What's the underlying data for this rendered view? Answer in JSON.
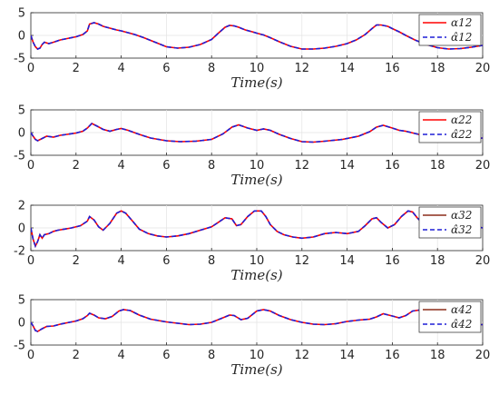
{
  "colors": {
    "solid": "#ff0000",
    "dashed": "#1f1fd6",
    "solid_dark": "#8b2d1a"
  },
  "chart_data": [
    {
      "type": "line",
      "xlabel": "Time(s)",
      "xlim": [
        0,
        20
      ],
      "ylim": [
        -5,
        5
      ],
      "xticks": [
        "0",
        "2",
        "4",
        "6",
        "8",
        "10",
        "12",
        "14",
        "16",
        "18",
        "20"
      ],
      "yticks": [
        "5",
        "0",
        "-5"
      ],
      "grid": true,
      "legend_position": "right",
      "x": [
        0,
        0.1,
        0.2,
        0.3,
        0.4,
        0.5,
        0.6,
        0.8,
        1,
        1.3,
        1.6,
        2,
        2.3,
        2.5,
        2.6,
        2.8,
        3,
        3.2,
        3.5,
        3.8,
        4,
        4.3,
        4.6,
        5,
        5.5,
        6,
        6.5,
        7,
        7.5,
        8,
        8.3,
        8.6,
        8.8,
        9,
        9.2,
        9.5,
        9.8,
        10,
        10.3,
        10.6,
        11,
        11.5,
        12,
        12.5,
        13,
        13.5,
        14,
        14.4,
        14.8,
        15.1,
        15.3,
        15.5,
        15.8,
        16,
        16.3,
        16.6,
        17,
        17.5,
        18,
        18.5,
        19,
        19.5,
        20
      ],
      "series": [
        {
          "name": "α12",
          "style": "solid",
          "values": [
            0,
            -1.5,
            -2.5,
            -3,
            -2.8,
            -2,
            -1.5,
            -1.8,
            -1.5,
            -1,
            -0.7,
            -0.3,
            0.2,
            1,
            2.5,
            2.8,
            2.5,
            2,
            1.6,
            1.2,
            1,
            0.6,
            0.2,
            -0.5,
            -1.5,
            -2.5,
            -2.8,
            -2.6,
            -2,
            -0.9,
            0.5,
            1.8,
            2.2,
            2.1,
            1.8,
            1.2,
            0.8,
            0.5,
            0.1,
            -0.5,
            -1.4,
            -2.4,
            -3,
            -3,
            -2.8,
            -2.4,
            -1.8,
            -1,
            0.2,
            1.5,
            2.3,
            2.3,
            2,
            1.5,
            0.8,
            0,
            -1,
            -2,
            -2.7,
            -3,
            -2.9,
            -2.6,
            -2.2
          ]
        },
        {
          "name": "α̂12",
          "style": "dashed",
          "values": [
            0,
            -1.5,
            -2.5,
            -3,
            -2.8,
            -2,
            -1.5,
            -1.8,
            -1.5,
            -1,
            -0.7,
            -0.3,
            0.2,
            1,
            2.5,
            2.8,
            2.5,
            2,
            1.6,
            1.2,
            1,
            0.6,
            0.2,
            -0.5,
            -1.5,
            -2.5,
            -2.8,
            -2.6,
            -2,
            -0.9,
            0.5,
            1.8,
            2.2,
            2.1,
            1.8,
            1.2,
            0.8,
            0.5,
            0.1,
            -0.5,
            -1.4,
            -2.4,
            -3,
            -3,
            -2.8,
            -2.4,
            -1.8,
            -1,
            0.2,
            1.5,
            2.3,
            2.3,
            2,
            1.5,
            0.8,
            0,
            -1,
            -2,
            -2.7,
            -3,
            -2.9,
            -2.6,
            -2.2
          ]
        }
      ]
    },
    {
      "type": "line",
      "xlabel": "Time(s)",
      "xlim": [
        0,
        20
      ],
      "ylim": [
        -5,
        5
      ],
      "xticks": [
        "0",
        "2",
        "4",
        "6",
        "8",
        "10",
        "12",
        "14",
        "16",
        "18",
        "20"
      ],
      "yticks": [
        "5",
        "0",
        "-5"
      ],
      "grid": true,
      "legend_position": "right",
      "x": [
        0,
        0.1,
        0.2,
        0.3,
        0.5,
        0.7,
        1,
        1.3,
        1.6,
        2,
        2.3,
        2.5,
        2.7,
        2.9,
        3.2,
        3.5,
        3.8,
        4,
        4.3,
        4.8,
        5.3,
        6,
        6.6,
        7.3,
        8,
        8.5,
        8.9,
        9.2,
        9.6,
        10,
        10.3,
        10.6,
        11,
        11.5,
        12,
        12.5,
        13,
        13.8,
        14.5,
        15,
        15.3,
        15.6,
        16,
        16.3,
        16.6,
        17,
        17.5,
        18,
        18.5,
        19,
        19.5,
        20
      ],
      "series": [
        {
          "name": "α22",
          "style": "solid",
          "values": [
            0,
            -0.8,
            -1.5,
            -1.8,
            -1.3,
            -0.8,
            -1,
            -0.6,
            -0.4,
            -0.1,
            0.3,
            1,
            2,
            1.5,
            0.7,
            0.3,
            0.7,
            0.9,
            0.5,
            -0.4,
            -1.2,
            -1.8,
            -2,
            -1.9,
            -1.5,
            -0.3,
            1.2,
            1.7,
            1,
            0.5,
            0.8,
            0.5,
            -0.4,
            -1.3,
            -2,
            -2.1,
            -1.9,
            -1.5,
            -0.8,
            0.2,
            1.2,
            1.6,
            1,
            0.5,
            0.3,
            -0.2,
            -0.8,
            -1.2,
            -1.5,
            -1.6,
            -1.4,
            -1.2
          ]
        },
        {
          "name": "α̂22",
          "style": "dashed",
          "values": [
            0,
            -0.8,
            -1.5,
            -1.8,
            -1.3,
            -0.8,
            -1,
            -0.6,
            -0.4,
            -0.1,
            0.3,
            1,
            2,
            1.5,
            0.7,
            0.3,
            0.7,
            0.9,
            0.5,
            -0.4,
            -1.2,
            -1.8,
            -2,
            -1.9,
            -1.5,
            -0.3,
            1.2,
            1.7,
            1,
            0.5,
            0.8,
            0.5,
            -0.4,
            -1.3,
            -2,
            -2.1,
            -1.9,
            -1.5,
            -0.8,
            0.2,
            1.2,
            1.6,
            1,
            0.5,
            0.3,
            -0.2,
            -0.8,
            -1.2,
            -1.5,
            -1.6,
            -1.4,
            -1.2
          ]
        }
      ]
    },
    {
      "type": "line",
      "xlabel": "Time(s)",
      "xlim": [
        0,
        20
      ],
      "ylim": [
        -2,
        2
      ],
      "xticks": [
        "0",
        "2",
        "4",
        "6",
        "8",
        "10",
        "12",
        "14",
        "16",
        "18",
        "20"
      ],
      "yticks": [
        "2",
        "0",
        "-2"
      ],
      "grid": true,
      "legend_position": "right",
      "x": [
        0,
        0.1,
        0.2,
        0.3,
        0.4,
        0.5,
        0.6,
        0.8,
        1,
        1.2,
        1.5,
        1.8,
        2.2,
        2.5,
        2.6,
        2.8,
        3,
        3.2,
        3.5,
        3.8,
        4,
        4.2,
        4.5,
        4.8,
        5.2,
        5.6,
        6,
        6.5,
        7,
        7.5,
        8,
        8.3,
        8.6,
        8.9,
        9.1,
        9.3,
        9.6,
        9.9,
        10.2,
        10.4,
        10.6,
        10.9,
        11.2,
        11.6,
        12,
        12.5,
        13,
        13.5,
        14,
        14.5,
        14.8,
        15.1,
        15.3,
        15.5,
        15.8,
        16.1,
        16.4,
        16.7,
        16.9,
        17.1,
        17.4,
        17.8,
        18.3,
        19,
        19.5,
        20
      ],
      "series": [
        {
          "name": "α32",
          "style": "solid",
          "values": [
            0,
            -1,
            -1.6,
            -1.2,
            -0.6,
            -0.9,
            -0.6,
            -0.5,
            -0.3,
            -0.2,
            -0.1,
            0,
            0.2,
            0.6,
            1,
            0.7,
            0.1,
            -0.2,
            0.4,
            1.3,
            1.5,
            1.3,
            0.6,
            -0.1,
            -0.5,
            -0.7,
            -0.8,
            -0.7,
            -0.5,
            -0.2,
            0.1,
            0.5,
            0.9,
            0.8,
            0.2,
            0.3,
            1,
            1.5,
            1.5,
            1,
            0.3,
            -0.3,
            -0.6,
            -0.8,
            -0.9,
            -0.8,
            -0.5,
            -0.4,
            -0.5,
            -0.3,
            0.2,
            0.8,
            0.9,
            0.5,
            0,
            0.3,
            1,
            1.5,
            1.4,
            0.9,
            0.3,
            -0.1,
            -0.1,
            0.1,
            0.2,
            0
          ]
        },
        {
          "name": "α̂32",
          "style": "dashed",
          "values": [
            0,
            -1,
            -1.6,
            -1.2,
            -0.6,
            -0.9,
            -0.6,
            -0.5,
            -0.3,
            -0.2,
            -0.1,
            0,
            0.2,
            0.6,
            1,
            0.7,
            0.1,
            -0.2,
            0.4,
            1.3,
            1.5,
            1.3,
            0.6,
            -0.1,
            -0.5,
            -0.7,
            -0.8,
            -0.7,
            -0.5,
            -0.2,
            0.1,
            0.5,
            0.9,
            0.8,
            0.2,
            0.3,
            1,
            1.5,
            1.5,
            1,
            0.3,
            -0.3,
            -0.6,
            -0.8,
            -0.9,
            -0.8,
            -0.5,
            -0.4,
            -0.5,
            -0.3,
            0.2,
            0.8,
            0.9,
            0.5,
            0,
            0.3,
            1,
            1.5,
            1.4,
            0.9,
            0.3,
            -0.1,
            -0.1,
            0.1,
            0.2,
            0
          ]
        }
      ]
    },
    {
      "type": "line",
      "xlabel": "Time(s)",
      "xlim": [
        0,
        20
      ],
      "ylim": [
        -5,
        5
      ],
      "xticks": [
        "0",
        "2",
        "4",
        "6",
        "8",
        "10",
        "12",
        "14",
        "16",
        "18",
        "20"
      ],
      "yticks": [
        "5",
        "0",
        "-5"
      ],
      "grid": true,
      "legend_position": "right",
      "x": [
        0,
        0.1,
        0.2,
        0.3,
        0.5,
        0.7,
        1,
        1.3,
        1.6,
        2,
        2.3,
        2.5,
        2.6,
        2.8,
        3,
        3.3,
        3.6,
        3.9,
        4.1,
        4.4,
        4.8,
        5.3,
        6,
        6.5,
        7,
        7.5,
        8,
        8.4,
        8.8,
        9,
        9.3,
        9.6,
        10,
        10.3,
        10.6,
        11,
        11.5,
        12,
        12.5,
        13,
        13.5,
        14,
        14.5,
        15,
        15.3,
        15.6,
        16,
        16.3,
        16.6,
        16.9,
        17.2,
        17.6,
        18,
        18.5,
        19,
        19.5,
        20
      ],
      "series": [
        {
          "name": "α42",
          "style": "solid",
          "values": [
            0,
            -0.8,
            -1.8,
            -2,
            -1.4,
            -0.9,
            -0.8,
            -0.4,
            -0.1,
            0.3,
            0.8,
            1.5,
            2,
            1.6,
            1,
            0.8,
            1.3,
            2.5,
            2.8,
            2.6,
            1.6,
            0.7,
            0.1,
            -0.2,
            -0.5,
            -0.4,
            0,
            0.8,
            1.6,
            1.5,
            0.6,
            0.9,
            2.5,
            2.8,
            2.5,
            1.5,
            0.6,
            0,
            -0.4,
            -0.5,
            -0.3,
            0.2,
            0.5,
            0.7,
            1.2,
            1.9,
            1.4,
            1,
            1.5,
            2.5,
            2.7,
            2,
            1,
            0,
            -0.4,
            -0.5,
            -0.5
          ]
        },
        {
          "name": "α̂42",
          "style": "dashed",
          "values": [
            0,
            -0.8,
            -1.8,
            -2,
            -1.4,
            -0.9,
            -0.8,
            -0.4,
            -0.1,
            0.3,
            0.8,
            1.5,
            2,
            1.6,
            1,
            0.8,
            1.3,
            2.5,
            2.8,
            2.6,
            1.6,
            0.7,
            0.1,
            -0.2,
            -0.5,
            -0.4,
            0,
            0.8,
            1.6,
            1.5,
            0.6,
            0.9,
            2.5,
            2.8,
            2.5,
            1.5,
            0.6,
            0,
            -0.4,
            -0.5,
            -0.3,
            0.2,
            0.5,
            0.7,
            1.2,
            1.9,
            1.4,
            1,
            1.5,
            2.5,
            2.7,
            2,
            1,
            0,
            -0.4,
            -0.5,
            -0.5
          ]
        }
      ]
    }
  ]
}
